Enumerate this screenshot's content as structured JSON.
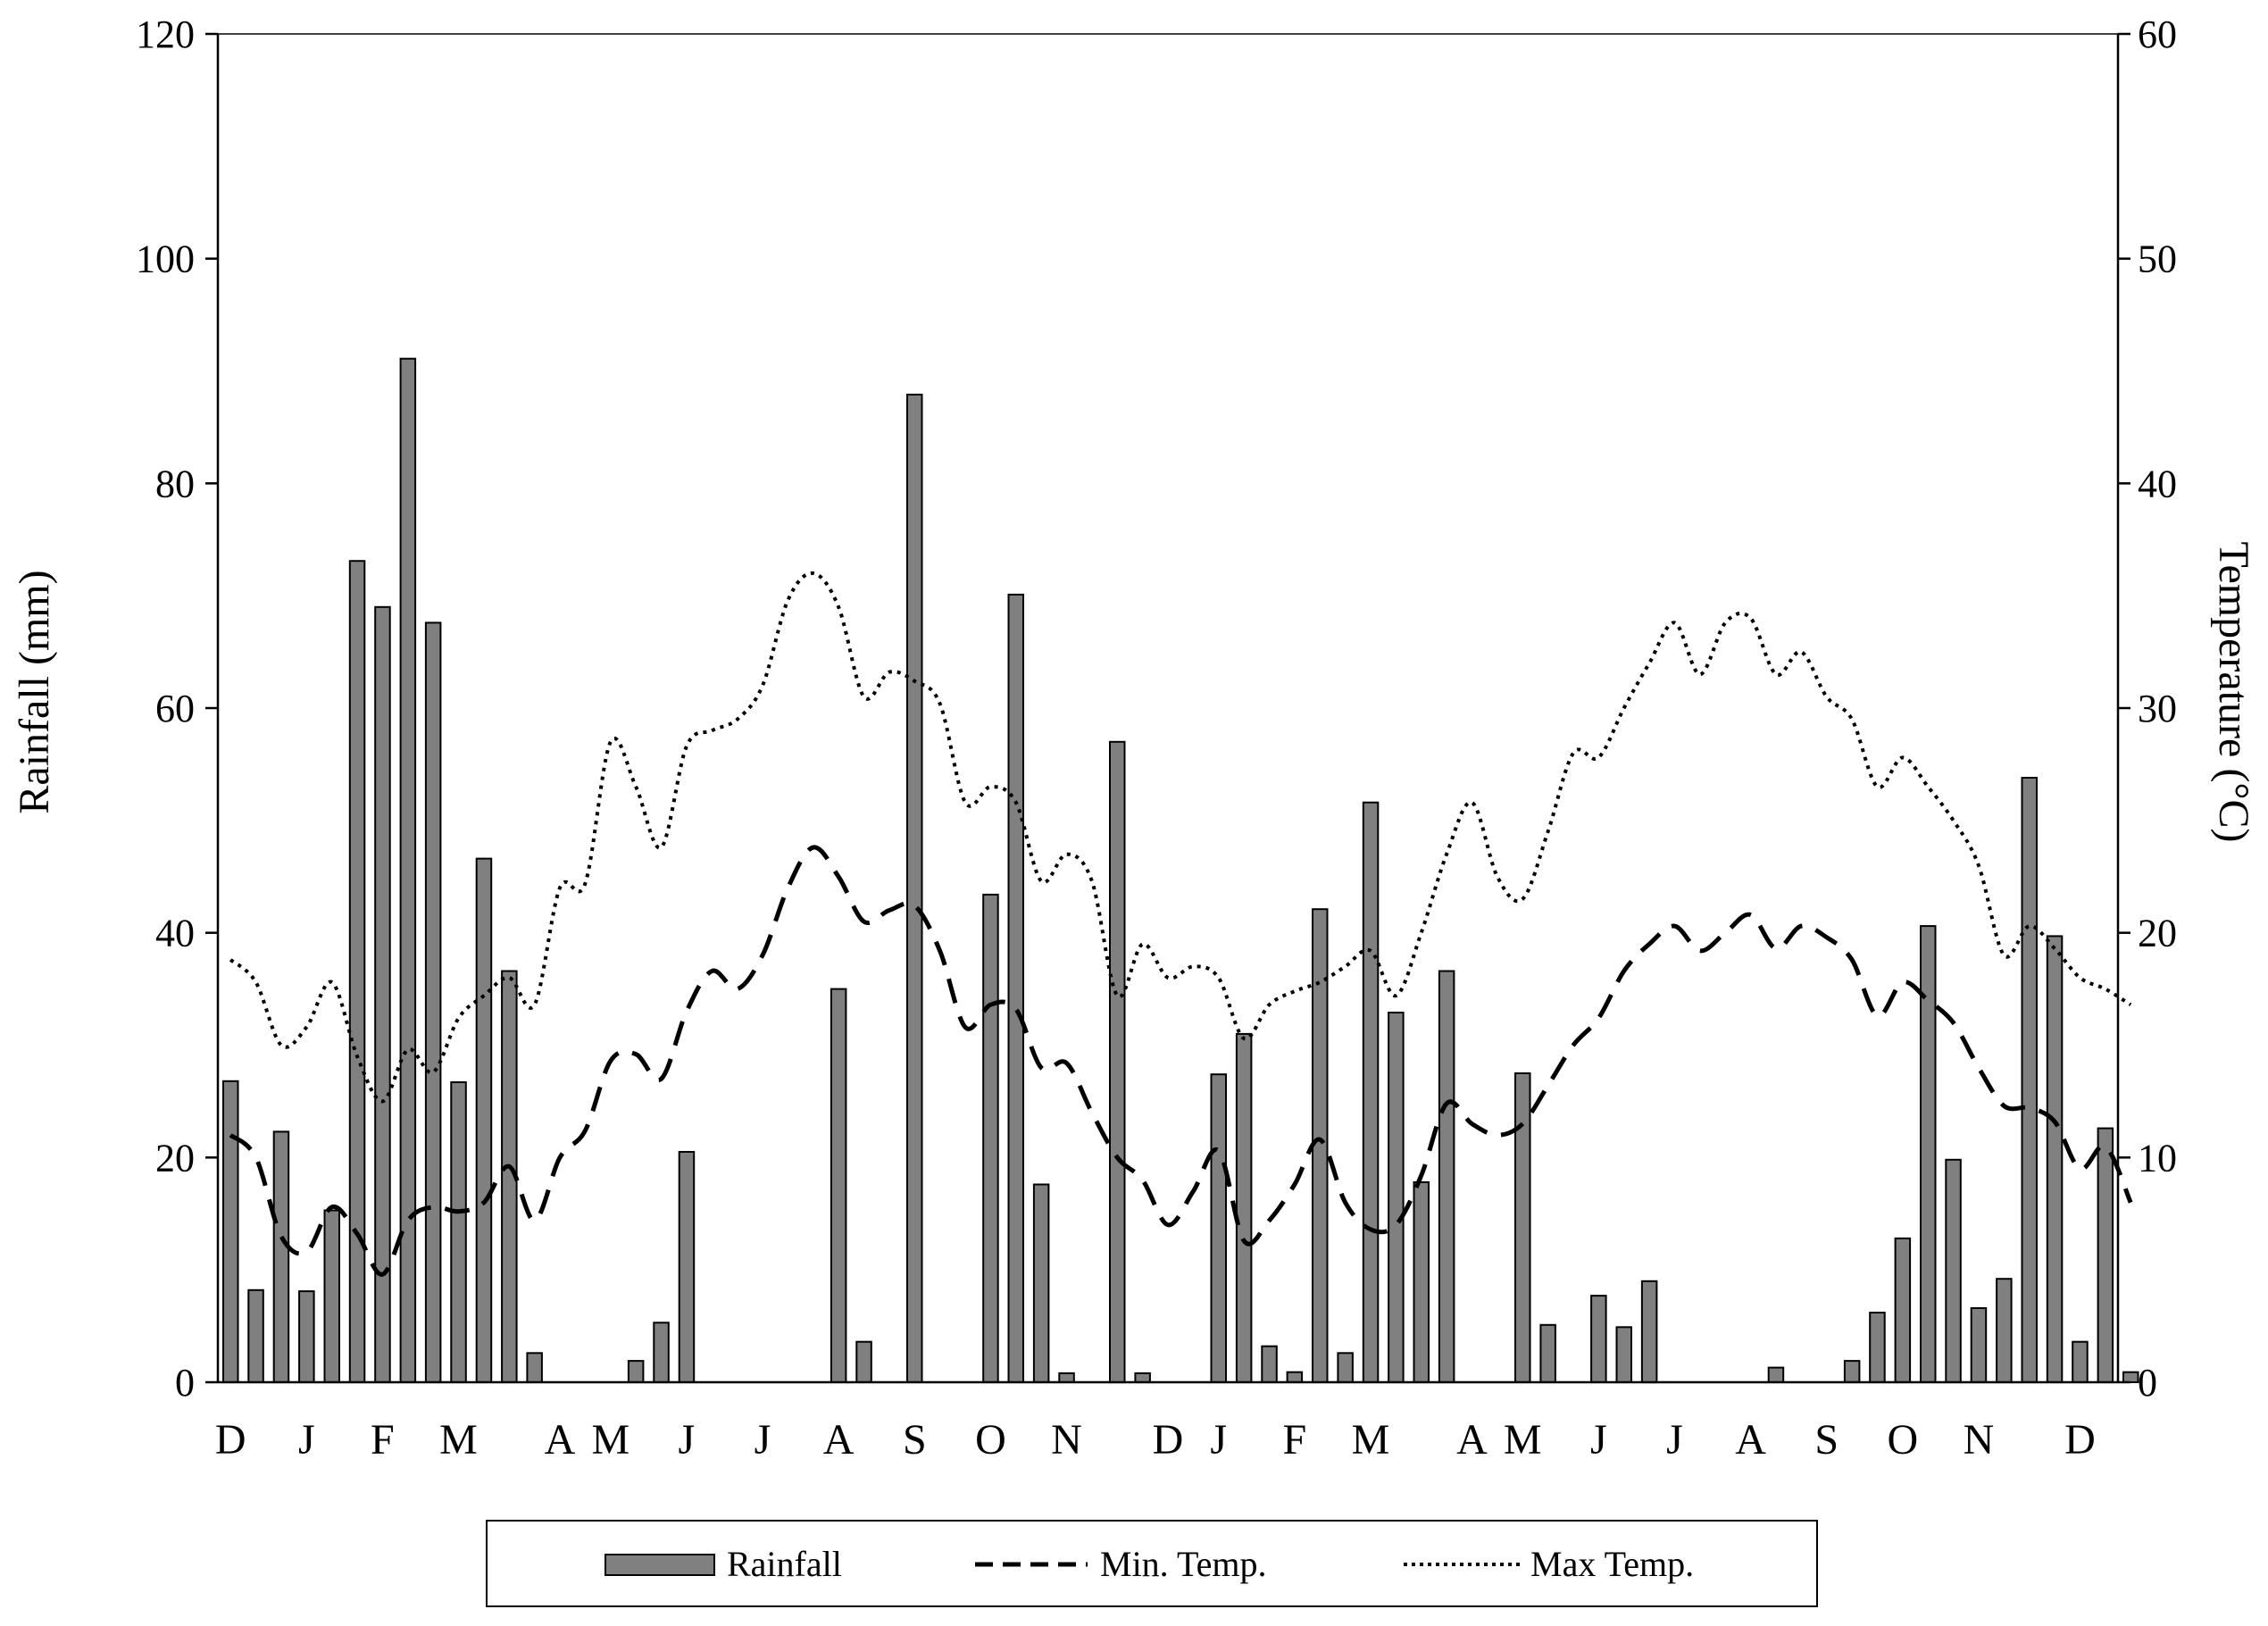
{
  "chart_data": {
    "type": "bar",
    "secondary_type": "line",
    "title": "",
    "ylabel": "Rainfall (mm)",
    "y2label": "Temperature (°C)",
    "ylim": [
      0,
      120
    ],
    "y2lim": [
      0,
      60
    ],
    "y_ticks": [
      "0",
      "20",
      "40",
      "60",
      "80",
      "100",
      "120"
    ],
    "y2_ticks": [
      "0",
      "10",
      "20",
      "30",
      "40",
      "50",
      "60"
    ],
    "month_labels": [
      "D",
      "J",
      "F",
      "M",
      "A",
      "M",
      "J",
      "J",
      "A",
      "S",
      "O",
      "N",
      "D",
      "J",
      "F",
      "M",
      "A",
      "M",
      "J",
      "J",
      "A",
      "S",
      "O",
      "N",
      "D"
    ],
    "month_label_slots": [
      0,
      3,
      6,
      9,
      13,
      15,
      18,
      21,
      24,
      27,
      30,
      33,
      37,
      39,
      42,
      45,
      49,
      51,
      54,
      57,
      60,
      63,
      66,
      69,
      73
    ],
    "slot_count": 75,
    "grid": false,
    "legend_position": "bottom",
    "series": [
      {
        "name": "Rainfall",
        "kind": "bar",
        "axis": "left",
        "color": "#808080",
        "values": [
          26.8,
          8.2,
          22.3,
          8.1,
          15.3,
          73.1,
          69.0,
          91.1,
          67.6,
          26.7,
          46.6,
          36.6,
          2.6,
          0,
          0,
          0,
          1.9,
          5.3,
          20.5,
          0,
          0,
          0,
          0,
          0,
          35.0,
          3.6,
          0,
          87.9,
          0,
          0,
          43.4,
          70.1,
          17.6,
          0.8,
          0,
          57.0,
          0.8,
          0,
          0,
          27.4,
          31.0,
          3.2,
          0.9,
          42.1,
          2.6,
          51.6,
          32.9,
          17.8,
          36.6,
          0,
          0,
          27.5,
          5.1,
          0,
          7.7,
          4.9,
          9.0,
          0,
          0,
          0,
          0,
          1.3,
          0,
          0,
          1.9,
          6.2,
          12.8,
          40.6,
          19.8,
          6.6,
          9.2,
          53.8,
          39.7,
          3.6,
          22.6,
          0.9
        ]
      },
      {
        "name": "Min. Temp.",
        "kind": "line",
        "style": "dashed",
        "axis": "right",
        "color": "#000000",
        "values": [
          11.0,
          10.0,
          6.5,
          5.8,
          7.8,
          6.6,
          4.8,
          7.2,
          7.8,
          7.6,
          8.0,
          9.6,
          7.2,
          10.0,
          11.2,
          14.3,
          14.6,
          13.5,
          16.5,
          18.3,
          17.5,
          19.0,
          22.0,
          23.8,
          22.5,
          20.5,
          21.0,
          21.2,
          19.2,
          15.8,
          16.8,
          16.6,
          14.0,
          14.2,
          12.0,
          10.0,
          9.0,
          7.0,
          8.5,
          10.3,
          6.3,
          7.2,
          8.8,
          10.8,
          8.0,
          6.8,
          7.0,
          9.2,
          12.4,
          11.5,
          11.0,
          11.5,
          13.2,
          15.0,
          16.2,
          18.3,
          19.5,
          20.3,
          19.2,
          20.0,
          20.8,
          19.3,
          20.3,
          19.8,
          18.8,
          16.3,
          17.8,
          17.0,
          16.0,
          14.0,
          12.3,
          12.2,
          11.6,
          9.5,
          10.5,
          8.0
        ]
      },
      {
        "name": "Max Temp.",
        "kind": "line",
        "style": "dotted",
        "axis": "right",
        "color": "#000000",
        "values": [
          18.8,
          17.8,
          15.0,
          15.8,
          17.8,
          14.5,
          12.5,
          14.8,
          13.8,
          16.2,
          17.2,
          18.0,
          16.8,
          22.0,
          22.2,
          28.5,
          26.5,
          23.8,
          28.3,
          29.0,
          29.5,
          31.0,
          34.8,
          36.0,
          34.5,
          30.5,
          31.6,
          31.2,
          30.2,
          25.8,
          26.5,
          25.8,
          22.3,
          23.5,
          22.3,
          17.2,
          19.5,
          18.0,
          18.5,
          18.0,
          15.3,
          16.8,
          17.4,
          17.8,
          18.5,
          19.2,
          17.2,
          20.0,
          23.5,
          25.8,
          22.5,
          21.5,
          24.5,
          28.0,
          27.8,
          30.0,
          32.0,
          33.8,
          31.5,
          33.8,
          34.0,
          31.5,
          32.5,
          30.5,
          29.5,
          26.5,
          27.8,
          26.5,
          25.0,
          23.0,
          19.0,
          20.3,
          19.3,
          18.0,
          17.5,
          16.8
        ]
      }
    ]
  },
  "legend": {
    "items": [
      {
        "label": "Rainfall",
        "swatch": "bar"
      },
      {
        "label": "Min. Temp.",
        "swatch": "dashed"
      },
      {
        "label": "Max Temp.",
        "swatch": "dotted"
      }
    ]
  },
  "colors": {
    "bar_fill": "#808080",
    "bar_stroke": "#000000",
    "line": "#000000",
    "axis": "#000000"
  }
}
